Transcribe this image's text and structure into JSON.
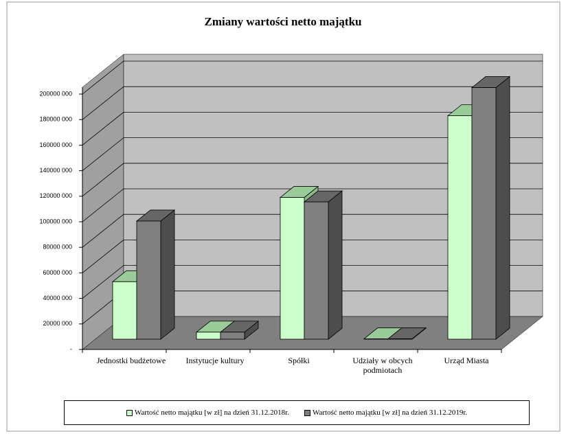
{
  "chart_data": {
    "type": "bar3d",
    "title": "Zmiany wartości netto majątku",
    "categories": [
      "Jednostki budżetowe",
      "Instytucje kultury",
      "Spółki",
      "Udziały w obcych podmiotach",
      "Urząd Miasta"
    ],
    "series": [
      {
        "name": "Wartość netto majątku [w zł] na dzień 31.12.2018r.",
        "color": "#ccffcc",
        "values": [
          45000000,
          5500000,
          111000000,
          300000,
          175000000
        ]
      },
      {
        "name": "Wartość netto majątku [w zł] na dzień 31.12.2019r.",
        "color": "#808080",
        "values": [
          92500000,
          5500000,
          107500000,
          300000,
          197000000
        ]
      }
    ],
    "ylim": [
      0,
      200000000
    ],
    "yticks": [
      {
        "value": 0,
        "label": "-"
      },
      {
        "value": 20000000,
        "label": "20000 000"
      },
      {
        "value": 40000000,
        "label": "40000 000"
      },
      {
        "value": 60000000,
        "label": "60000 000"
      },
      {
        "value": 80000000,
        "label": "80000 000"
      },
      {
        "value": 100000000,
        "label": "100000 000"
      },
      {
        "value": 120000000,
        "label": "120000 000"
      },
      {
        "value": 140000000,
        "label": "140000 000"
      },
      {
        "value": 160000000,
        "label": "160000 000"
      },
      {
        "value": 180000000,
        "label": "180000 000"
      },
      {
        "value": 200000000,
        "label": "200000 000"
      }
    ],
    "grid": true
  }
}
